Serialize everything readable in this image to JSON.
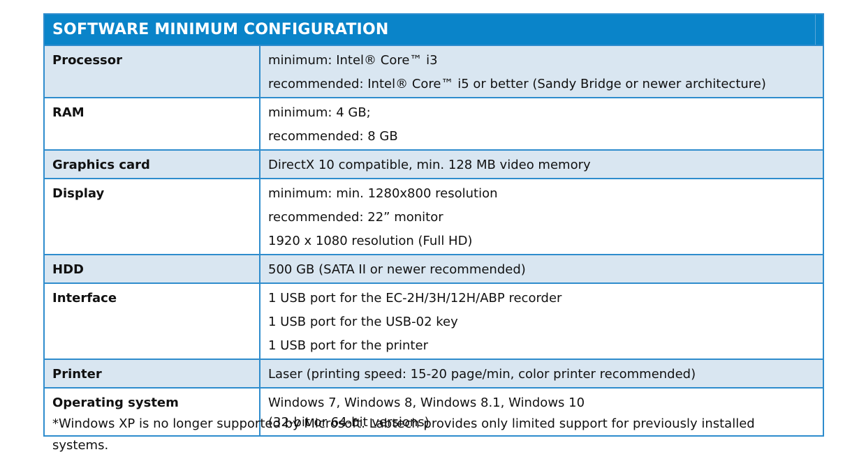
{
  "table": {
    "title": "SOFTWARE MINIMUM CONFIGURATION",
    "rows": [
      {
        "label": "Processor",
        "lines": [
          "minimum: Intel® Core™ i3",
          "recommended: Intel® Core™ i5 or better (Sandy Bridge or newer architecture)"
        ]
      },
      {
        "label": "RAM",
        "lines": [
          "minimum: 4 GB;",
          "recommended: 8 GB"
        ]
      },
      {
        "label": "Graphics card",
        "lines": [
          "DirectX 10 compatible, min. 128 MB video memory"
        ]
      },
      {
        "label": "Display",
        "lines": [
          "minimum: min. 1280x800 resolution",
          "recommended:  22” monitor",
          "1920 x 1080 resolution (Full HD)"
        ]
      },
      {
        "label": "HDD",
        "lines": [
          "500 GB (SATA II or newer recommended)"
        ]
      },
      {
        "label": "Interface",
        "lines": [
          "1 USB port for the EC-2H/3H/12H/ABP recorder",
          "1 USB port for the USB-02 key",
          "1 USB port for the printer"
        ]
      },
      {
        "label": "Printer",
        "lines": [
          "Laser (printing speed: 15-20 page/min, color printer recommended)"
        ]
      },
      {
        "label": "Operating system",
        "lines": [
          "Windows 7, Windows 8, Windows 8.1, Windows 10",
          "(32-bit or 64-bit versions)"
        ]
      }
    ]
  },
  "footnote": "*Windows XP is no longer supported by Microsoft. Labtech provides only limited support for previously installed systems.",
  "colors": {
    "header_bg": "#0a84c9",
    "border": "#2e8ccd",
    "shaded_row": "#d9e6f1"
  }
}
